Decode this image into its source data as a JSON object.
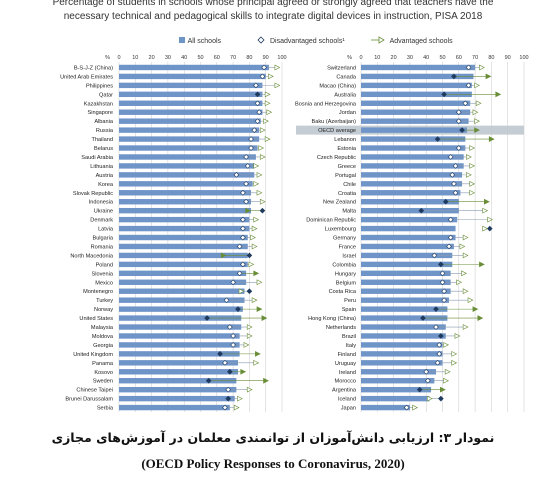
{
  "title": {
    "line1": "Percentage of students in schools whose principal agreed or strongly agreed that teachers have the",
    "line2": "necessary technical and pedagogical skills to integrate digital devices in instruction, PISA 2018"
  },
  "legend": {
    "all": "All schools",
    "disadvantaged": "Disadvantaged schools¹",
    "advantaged": "Advantaged schools"
  },
  "colors": {
    "bar": "#6f94c8",
    "oecd_row": "#c4ccd4",
    "marker_dark": "#1f3a5f",
    "marker_green": "#6a8e38",
    "marker_white": "#ffffff",
    "grid": "#c8c8c8"
  },
  "caption_fa": "نمودار ۳: ارزیابی دانش‌آموزان از توانمندی معلمان در آموزش‌های مجازی",
  "caption_src": "(OECD Policy Responses to Coronavirus, 2020)",
  "chart_data": [
    {
      "type": "bar",
      "orientation": "horizontal",
      "axis_label": "%",
      "xlim": [
        0,
        100
      ],
      "ticks": [
        0,
        10,
        20,
        30,
        40,
        50,
        60,
        70,
        80,
        90,
        100
      ],
      "grid": true,
      "legend_position": "top",
      "rows": [
        {
          "label": "B-S-J-Z (China)",
          "all": 92,
          "dis": 89,
          "dis_style": "white",
          "adv": 97,
          "adv_style": "white"
        },
        {
          "label": "United Arab Emirates",
          "all": 90,
          "dis": 88,
          "dis_style": "white",
          "adv": 93,
          "adv_style": "white"
        },
        {
          "label": "Philippines",
          "all": 88,
          "dis": 84,
          "dis_style": "white",
          "adv": 97,
          "adv_style": "white"
        },
        {
          "label": "Qatar",
          "all": 88,
          "dis": 85,
          "dis_style": "dark",
          "adv": 91,
          "adv_style": "white"
        },
        {
          "label": "Kazakhstan",
          "all": 88,
          "dis": 85,
          "dis_style": "white",
          "adv": 91,
          "adv_style": "white"
        },
        {
          "label": "Singapore",
          "all": 88,
          "dis": 86,
          "dis_style": "white",
          "adv": 92,
          "adv_style": "white"
        },
        {
          "label": "Albania",
          "all": 87,
          "dis": 85,
          "dis_style": "white",
          "adv": 90,
          "adv_style": "white"
        },
        {
          "label": "Russia",
          "all": 86,
          "dis": 83,
          "dis_style": "white",
          "adv": 88,
          "adv_style": "white"
        },
        {
          "label": "Thailand",
          "all": 86,
          "dis": 81,
          "dis_style": "white",
          "adv": 91,
          "adv_style": "white"
        },
        {
          "label": "Belarus",
          "all": 85,
          "dis": 81,
          "dis_style": "white",
          "adv": 87,
          "adv_style": "white"
        },
        {
          "label": "Saudi Arabia",
          "all": 84,
          "dis": 78,
          "dis_style": "white",
          "adv": 88,
          "adv_style": "white"
        },
        {
          "label": "Lithuania",
          "all": 83,
          "dis": 79,
          "dis_style": "white",
          "adv": 84,
          "adv_style": "white"
        },
        {
          "label": "Austria",
          "all": 83,
          "dis": 72,
          "dis_style": "white",
          "adv": 86,
          "adv_style": "white"
        },
        {
          "label": "Korea",
          "all": 82,
          "dis": 78,
          "dis_style": "white",
          "adv": 84,
          "adv_style": "white"
        },
        {
          "label": "Slovak Republic",
          "all": 81,
          "dis": 76,
          "dis_style": "white",
          "adv": 86,
          "adv_style": "white"
        },
        {
          "label": "Indonesia",
          "all": 81,
          "dis": 78,
          "dis_style": "white",
          "adv": 88,
          "adv_style": "white"
        },
        {
          "label": "Ukraine",
          "all": 81,
          "dis": 88,
          "dis_style": "dark",
          "adv": 79,
          "adv_style": "green"
        },
        {
          "label": "Denmark",
          "all": 80,
          "dis": 76,
          "dis_style": "white",
          "adv": 84,
          "adv_style": "white"
        },
        {
          "label": "Latvia",
          "all": 80,
          "dis": 76,
          "dis_style": "white",
          "adv": 83,
          "adv_style": "white"
        },
        {
          "label": "Bulgaria",
          "all": 79,
          "dis": 76,
          "dis_style": "white",
          "adv": 82,
          "adv_style": "white"
        },
        {
          "label": "Romania",
          "all": 79,
          "dis": 74,
          "dis_style": "white",
          "adv": 83,
          "adv_style": "white"
        },
        {
          "label": "North Macedonia",
          "all": 79,
          "dis": 80,
          "dis_style": "dark",
          "adv": 64,
          "adv_style": "green"
        },
        {
          "label": "Poland",
          "all": 79,
          "dis": 76,
          "dis_style": "white",
          "adv": 81,
          "adv_style": "white"
        },
        {
          "label": "Slovenia",
          "all": 78,
          "dis": 74,
          "dis_style": "white",
          "adv": 84,
          "adv_style": "green"
        },
        {
          "label": "Mexico",
          "all": 78,
          "dis": 70,
          "dis_style": "white",
          "adv": 86,
          "adv_style": "white"
        },
        {
          "label": "Montenegro",
          "all": 77,
          "dis": 80,
          "dis_style": "dark",
          "adv": 75,
          "adv_style": "white"
        },
        {
          "label": "Turkey",
          "all": 77,
          "dis": 66,
          "dis_style": "white",
          "adv": 83,
          "adv_style": "white"
        },
        {
          "label": "Norway",
          "all": 76,
          "dis": 73,
          "dis_style": "dark",
          "adv": 86,
          "adv_style": "green"
        },
        {
          "label": "United States",
          "all": 75,
          "dis": 54,
          "dis_style": "dark",
          "adv": 89,
          "adv_style": "green"
        },
        {
          "label": "Malaysia",
          "all": 75,
          "dis": 68,
          "dis_style": "white",
          "adv": 80,
          "adv_style": "white"
        },
        {
          "label": "Moldova",
          "all": 74,
          "dis": 70,
          "dis_style": "white",
          "adv": 80,
          "adv_style": "white"
        },
        {
          "label": "Georgia",
          "all": 74,
          "dis": 70,
          "dis_style": "white",
          "adv": 78,
          "adv_style": "white"
        },
        {
          "label": "United Kingdom",
          "all": 74,
          "dis": 62,
          "dis_style": "dark",
          "adv": 85,
          "adv_style": "green"
        },
        {
          "label": "Panama",
          "all": 73,
          "dis": 65,
          "dis_style": "white",
          "adv": 84,
          "adv_style": "white"
        },
        {
          "label": "Kosovo",
          "all": 73,
          "dis": 68,
          "dis_style": "dark",
          "adv": 76,
          "adv_style": "green"
        },
        {
          "label": "Sweden",
          "all": 72,
          "dis": 55,
          "dis_style": "dark",
          "adv": 90,
          "adv_style": "green"
        },
        {
          "label": "Chinese Taipei",
          "all": 72,
          "dis": 67,
          "dis_style": "white",
          "adv": 80,
          "adv_style": "white"
        },
        {
          "label": "Brunei Darussalam",
          "all": 71,
          "dis": 67,
          "dis_style": "dark",
          "adv": 74,
          "adv_style": "white"
        },
        {
          "label": "Serbia",
          "all": 68,
          "dis": 65,
          "dis_style": "white",
          "adv": 72,
          "adv_style": "white"
        }
      ]
    },
    {
      "type": "bar",
      "orientation": "horizontal",
      "axis_label": "%",
      "xlim": [
        0,
        100
      ],
      "ticks": [
        0,
        10,
        20,
        30,
        40,
        50,
        60,
        70,
        80,
        90,
        100
      ],
      "grid": true,
      "legend_position": "top",
      "rows": [
        {
          "label": "Switzerland",
          "all": 70,
          "dis": 66,
          "dis_style": "white",
          "adv": 74,
          "adv_style": "white"
        },
        {
          "label": "Canada",
          "all": 69,
          "dis": 57,
          "dis_style": "dark",
          "adv": 78,
          "adv_style": "green"
        },
        {
          "label": "Macao (China)",
          "all": 68,
          "dis": 66,
          "dis_style": "white",
          "adv": 71,
          "adv_style": "white"
        },
        {
          "label": "Australia",
          "all": 68,
          "dis": 51,
          "dis_style": "dark",
          "adv": 84,
          "adv_style": "green"
        },
        {
          "label": "Bosnia and Herzegovina",
          "all": 67,
          "dis": 64,
          "dis_style": "white",
          "adv": 72,
          "adv_style": "white"
        },
        {
          "label": "Jordan",
          "all": 67,
          "dis": 60,
          "dis_style": "white",
          "adv": 70,
          "adv_style": "white"
        },
        {
          "label": "Baku (Azerbaijan)",
          "all": 66,
          "dis": 60,
          "dis_style": "white",
          "adv": 71,
          "adv_style": "white"
        },
        {
          "label": "OECD average",
          "all": 65,
          "dis": 62,
          "dis_style": "dark",
          "adv": 71,
          "adv_style": "green",
          "highlight": true
        },
        {
          "label": "Lebanon",
          "all": 64,
          "dis": 47,
          "dis_style": "dark",
          "adv": 80,
          "adv_style": "green"
        },
        {
          "label": "Estonia",
          "all": 64,
          "dis": 60,
          "dis_style": "white",
          "adv": 68,
          "adv_style": "white"
        },
        {
          "label": "Czech Republic",
          "all": 63,
          "dis": 55,
          "dis_style": "white",
          "adv": 66,
          "adv_style": "white"
        },
        {
          "label": "Greece",
          "all": 63,
          "dis": 58,
          "dis_style": "white",
          "adv": 68,
          "adv_style": "white"
        },
        {
          "label": "Portugal",
          "all": 62,
          "dis": 56,
          "dis_style": "white",
          "adv": 66,
          "adv_style": "white"
        },
        {
          "label": "Chile",
          "all": 62,
          "dis": 57,
          "dis_style": "white",
          "adv": 68,
          "adv_style": "white"
        },
        {
          "label": "Croatia",
          "all": 61,
          "dis": 58,
          "dis_style": "white",
          "adv": 68,
          "adv_style": "white"
        },
        {
          "label": "New Zealand",
          "all": 60,
          "dis": 52,
          "dis_style": "dark",
          "adv": 77,
          "adv_style": "green"
        },
        {
          "label": "Malta",
          "all": 60,
          "dis": 37,
          "dis_style": "dark",
          "adv": 76,
          "adv_style": "white"
        },
        {
          "label": "Dominican Republic",
          "all": 59,
          "dis": 55,
          "dis_style": "white",
          "adv": 79,
          "adv_style": "white"
        },
        {
          "label": "Luxembourg",
          "all": 58,
          "dis": 79,
          "dis_style": "dark",
          "adv": 76,
          "adv_style": "white"
        },
        {
          "label": "Germany",
          "all": 58,
          "dis": 55,
          "dis_style": "white",
          "adv": 64,
          "adv_style": "white"
        },
        {
          "label": "France",
          "all": 57,
          "dis": 54,
          "dis_style": "white",
          "adv": 62,
          "adv_style": "white"
        },
        {
          "label": "Israel",
          "all": 56,
          "dis": 45,
          "dis_style": "white",
          "adv": 64,
          "adv_style": "white"
        },
        {
          "label": "Colombia",
          "all": 56,
          "dis": 49,
          "dis_style": "dark",
          "adv": 74,
          "adv_style": "green"
        },
        {
          "label": "Hungary",
          "all": 55,
          "dis": 50,
          "dis_style": "white",
          "adv": 63,
          "adv_style": "white"
        },
        {
          "label": "Belgium",
          "all": 55,
          "dis": 50,
          "dis_style": "white",
          "adv": 60,
          "adv_style": "white"
        },
        {
          "label": "Costa Rica",
          "all": 55,
          "dis": 51,
          "dis_style": "white",
          "adv": 64,
          "adv_style": "white"
        },
        {
          "label": "Peru",
          "all": 54,
          "dis": 51,
          "dis_style": "white",
          "adv": 67,
          "adv_style": "white"
        },
        {
          "label": "Spain",
          "all": 53,
          "dis": 46,
          "dis_style": "dark",
          "adv": 70,
          "adv_style": "green"
        },
        {
          "label": "Hong Kong (China)",
          "all": 53,
          "dis": 38,
          "dis_style": "dark",
          "adv": 73,
          "adv_style": "green"
        },
        {
          "label": "Netherlands",
          "all": 52,
          "dis": 46,
          "dis_style": "white",
          "adv": 64,
          "adv_style": "white"
        },
        {
          "label": "Brazil",
          "all": 52,
          "dis": 49,
          "dis_style": "dark",
          "adv": 59,
          "adv_style": "white"
        },
        {
          "label": "Italy",
          "all": 50,
          "dis": 48,
          "dis_style": "white",
          "adv": 52,
          "adv_style": "white"
        },
        {
          "label": "Finland",
          "all": 50,
          "dis": 48,
          "dis_style": "white",
          "adv": 57,
          "adv_style": "white"
        },
        {
          "label": "Uruguay",
          "all": 50,
          "dis": 47,
          "dis_style": "white",
          "adv": 57,
          "adv_style": "white"
        },
        {
          "label": "Ireland",
          "all": 46,
          "dis": 40,
          "dis_style": "white",
          "adv": 53,
          "adv_style": "white"
        },
        {
          "label": "Morocco",
          "all": 45,
          "dis": 41,
          "dis_style": "white",
          "adv": 52,
          "adv_style": "white"
        },
        {
          "label": "Argentina",
          "all": 43,
          "dis": 36,
          "dis_style": "dark",
          "adv": 50,
          "adv_style": "green"
        },
        {
          "label": "Iceland",
          "all": 42,
          "dis": 49,
          "dis_style": "dark",
          "adv": 42,
          "adv_style": "white"
        },
        {
          "label": "Japan",
          "all": 30,
          "dis": 28,
          "dis_style": "white",
          "adv": 33,
          "adv_style": "white"
        }
      ]
    }
  ]
}
